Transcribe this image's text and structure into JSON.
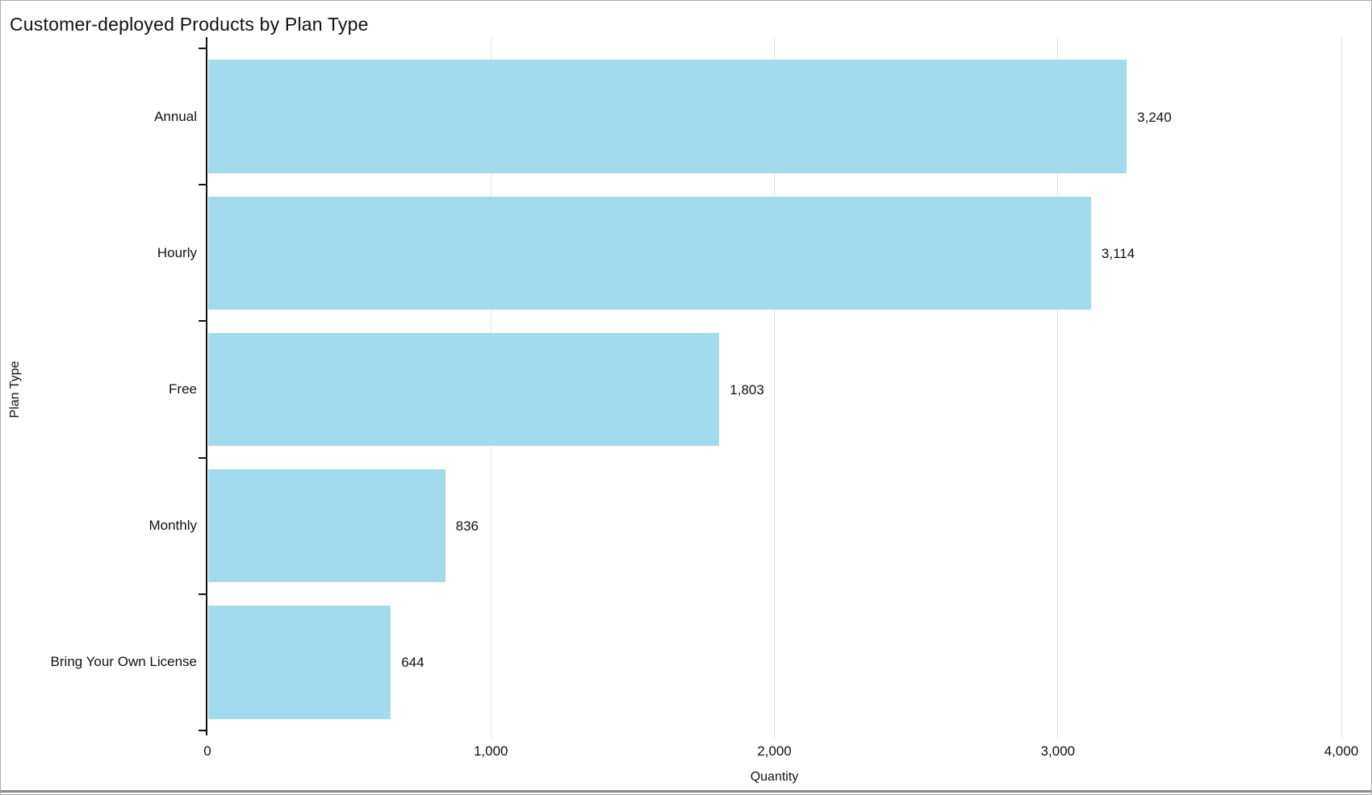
{
  "title": "Customer-deployed Products by Plan Type",
  "chart_data": {
    "type": "bar",
    "orientation": "horizontal",
    "title": "Customer-deployed Products by Plan Type",
    "categories": [
      "Annual",
      "Hourly",
      "Free",
      "Monthly",
      "Bring Your Own License"
    ],
    "values": [
      3240,
      3114,
      1803,
      836,
      644
    ],
    "value_labels": [
      "3,240",
      "3,114",
      "1,803",
      "836",
      "644"
    ],
    "xlabel": "Quantity",
    "ylabel": "Plan Type",
    "xlim": [
      0,
      4000
    ],
    "x_ticks": [
      0,
      1000,
      2000,
      3000,
      4000
    ],
    "x_tick_labels": [
      "0",
      "1,000",
      "2,000",
      "3,000",
      "4,000"
    ],
    "grid": "vertical-only",
    "legend": "none",
    "bar_color": "#a3dbee",
    "gridline_color": "#e4e4e4",
    "axis_color": "#111111"
  }
}
